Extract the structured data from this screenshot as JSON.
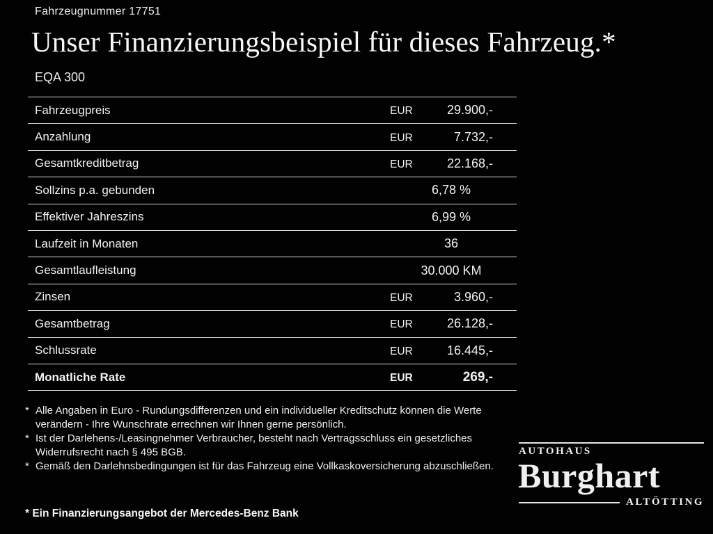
{
  "header": {
    "vehicle_number": "Fahrzeugnummer 17751",
    "title": "Unser Finanzierungsbeispiel für dieses Fahrzeug.*",
    "model": "EQA 300"
  },
  "table": {
    "rows": [
      {
        "label": "Fahrzeugpreis",
        "currency": "EUR",
        "value": "29.900,-"
      },
      {
        "label": "Anzahlung",
        "currency": "EUR",
        "value": "7.732,-"
      },
      {
        "label": "Gesamtkreditbetrag",
        "currency": "EUR",
        "value": "22.168,-"
      },
      {
        "label": "Sollzins p.a. gebunden",
        "currency": "",
        "value": "6,78 %"
      },
      {
        "label": "Effektiver Jahreszins",
        "currency": "",
        "value": "6,99 %"
      },
      {
        "label": "Laufzeit in Monaten",
        "currency": "",
        "value": "36"
      },
      {
        "label": "Gesamtlaufleistung",
        "currency": "",
        "value": "30.000 KM"
      },
      {
        "label": "Zinsen",
        "currency": "EUR",
        "value": "3.960,-"
      },
      {
        "label": "Gesamtbetrag",
        "currency": "EUR",
        "value": "26.128,-"
      },
      {
        "label": "Schlussrate",
        "currency": "EUR",
        "value": "16.445,-"
      },
      {
        "label": "Monatliche Rate",
        "currency": "EUR",
        "value": "269,-"
      }
    ]
  },
  "footnotes": [
    {
      "marker": "*",
      "text": "Alle Angaben in Euro - Rundungsdifferenzen und ein individueller Kreditschutz können die Werte verändern - Ihre Wunschrate errechnen wir Ihnen gerne persönlich."
    },
    {
      "marker": "*",
      "text": "Ist der Darlehens-/Leasingnehmer Verbraucher, besteht nach Vertragsschluss ein gesetzliches Widerrufsrecht nach § 495 BGB."
    },
    {
      "marker": "*",
      "text": "Gemäß den Darlehnsbedingungen ist für das Fahrzeug eine Vollkaskoversicherung abzuschließen."
    }
  ],
  "financing_note": "* Ein Finanzierungsangebot der Mercedes-Benz Bank",
  "logo": {
    "line1": "Autohaus",
    "name": "Burghart",
    "city": "Altötting"
  },
  "colors": {
    "background": "#020202",
    "text": "#f2f2f2",
    "rule": "#d9d9d9"
  }
}
